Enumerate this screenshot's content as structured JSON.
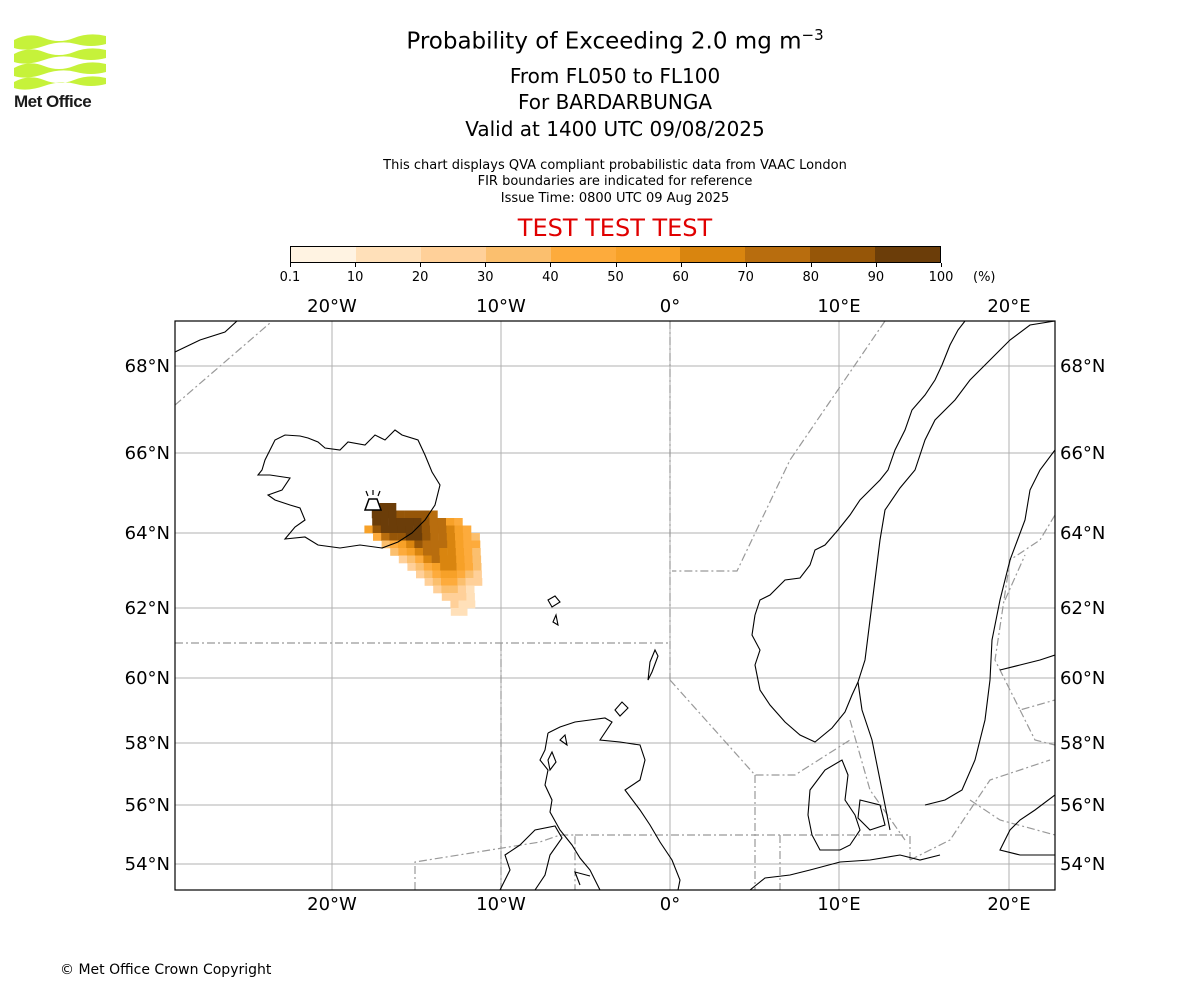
{
  "header": {
    "title_main": "Probability of Exceeding 2.0 mg m",
    "title_sup": "−3",
    "levels": "From FL050 to FL100",
    "volcano": "For BARDARBUNGA",
    "valid": "Valid at 1400 UTC 09/08/2025",
    "note1": "This chart displays QVA compliant probabilistic data from VAAC London",
    "note2": "FIR boundaries are indicated for reference",
    "issue": "Issue Time: 0800 UTC 09 Aug 2025",
    "test_banner": "TEST TEST TEST"
  },
  "logo": {
    "text": "Met Office",
    "color": "#c6f23a"
  },
  "colorbar": {
    "ticks": [
      "0.1",
      "10",
      "20",
      "30",
      "40",
      "50",
      "60",
      "70",
      "80",
      "90",
      "100"
    ],
    "colors": [
      "#fff3e2",
      "#ffe0b9",
      "#ffd099",
      "#fbbf6e",
      "#fdab3c",
      "#f7a128",
      "#d9850f",
      "#b86d0e",
      "#965608",
      "#6b3d09"
    ],
    "unit": "(%)"
  },
  "map": {
    "lon_labels": [
      "20°W",
      "10°W",
      "0°",
      "10°E",
      "20°E"
    ],
    "lat_labels": [
      "68°N",
      "66°N",
      "64°N",
      "62°N",
      "60°N",
      "58°N",
      "56°N",
      "54°N"
    ],
    "volcano_marker": "volcano-icon"
  },
  "footer": {
    "copyright": "© Met Office Crown Copyright"
  }
}
